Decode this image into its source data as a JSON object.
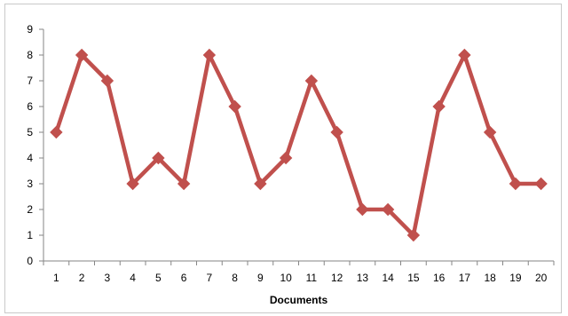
{
  "chart_data": {
    "type": "line",
    "title": "",
    "xlabel": "Documents",
    "ylabel": "",
    "categories": [
      "1",
      "2",
      "3",
      "4",
      "5",
      "6",
      "7",
      "8",
      "9",
      "10",
      "11",
      "12",
      "13",
      "14",
      "15",
      "16",
      "17",
      "18",
      "19",
      "20"
    ],
    "series": [
      {
        "values": [
          5,
          8,
          7,
          3,
          4,
          3,
          8,
          6,
          3,
          4,
          7,
          5,
          2,
          2,
          1,
          6,
          8,
          5,
          3,
          3
        ],
        "color": "#c0504d",
        "marker": "diamond"
      }
    ],
    "ylim": [
      0,
      9
    ],
    "yticks": [
      0,
      1,
      2,
      3,
      4,
      5,
      6,
      7,
      8,
      9
    ],
    "grid": false,
    "legend": "none"
  }
}
